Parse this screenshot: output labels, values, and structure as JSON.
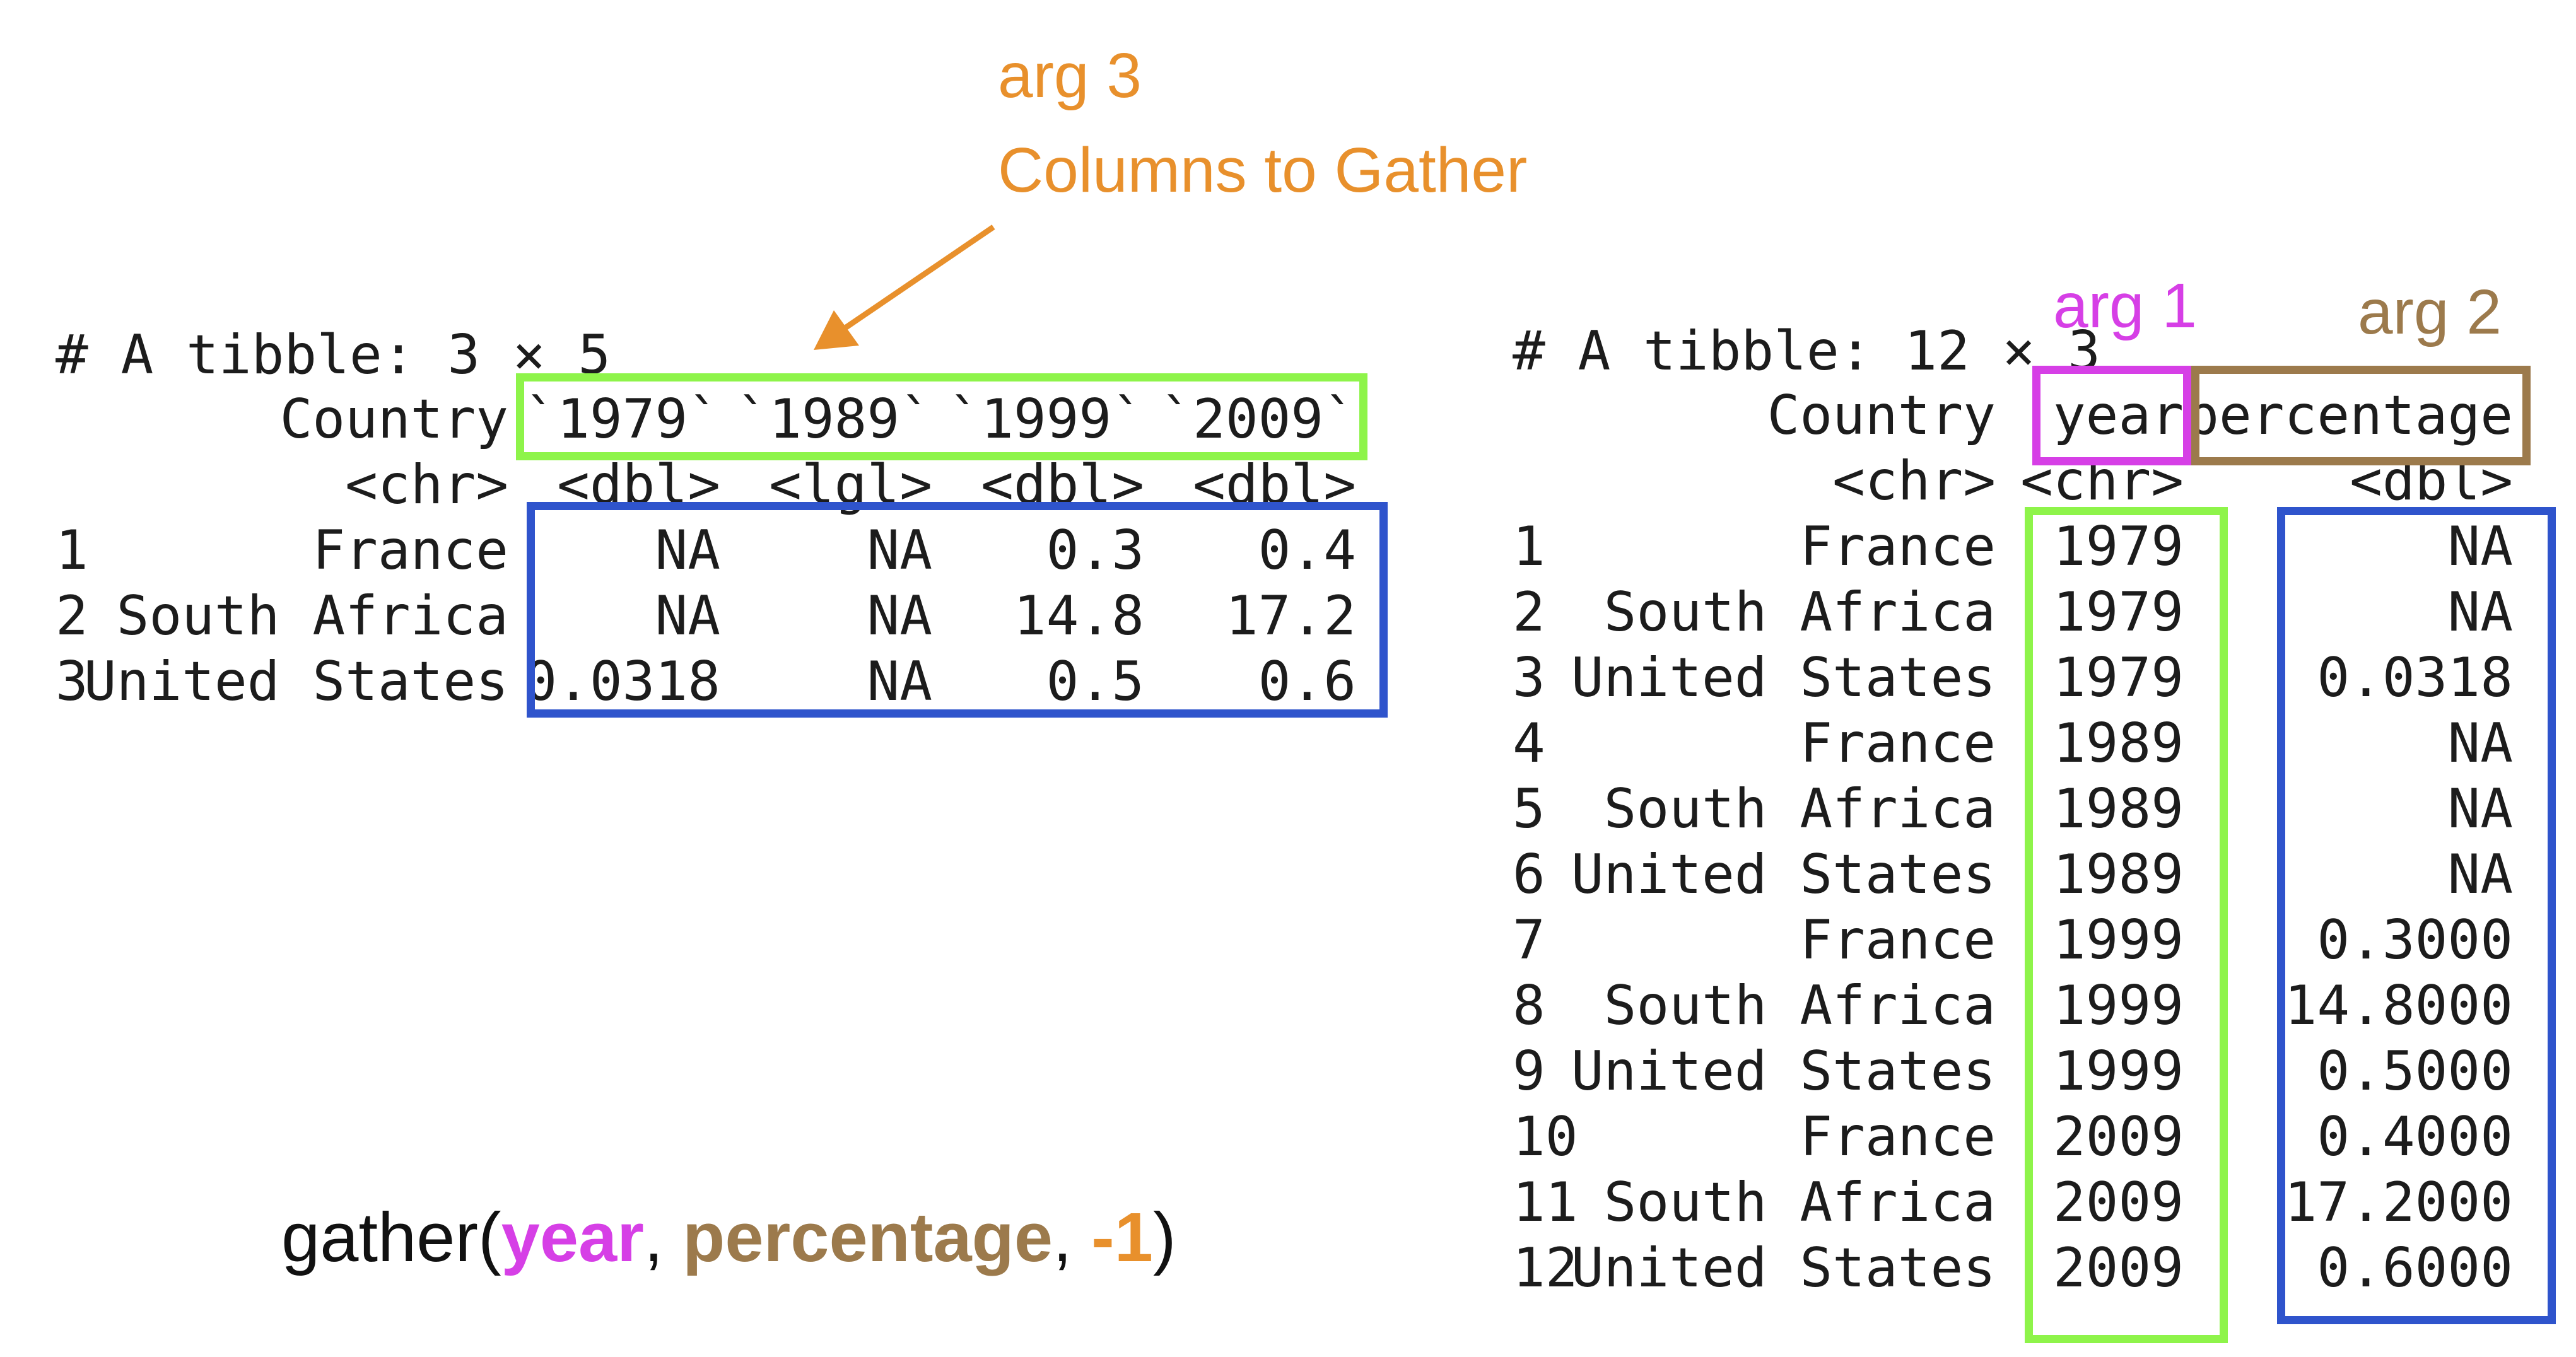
{
  "annotations": {
    "arg3_title": "arg 3",
    "arg3_subtitle": "Columns to Gather",
    "arg1": "arg 1",
    "arg2": "arg 2"
  },
  "code": {
    "prefix": "gather(",
    "arg1": "year",
    "sep1": ", ",
    "arg2": "percentage",
    "sep2": ", ",
    "arg3": "-1",
    "suffix": ")"
  },
  "colors": {
    "orange": "#e8902c",
    "magenta": "#d63fe6",
    "brown": "#9c7a4c",
    "green": "#8ef44a",
    "blue": "#2f54cc"
  },
  "wide_table": {
    "header": "# A tibble: 3 × 5",
    "columns": [
      "Country",
      "`1979`",
      "`1989`",
      "`1999`",
      "`2009`"
    ],
    "types": [
      "<chr>",
      "<dbl>",
      "<lgl>",
      "<dbl>",
      "<dbl>"
    ],
    "rows": [
      {
        "idx": "1",
        "country": "France",
        "values": [
          "NA",
          "NA",
          "0.3",
          "0.4"
        ]
      },
      {
        "idx": "2",
        "country": "South Africa",
        "values": [
          "NA",
          "NA",
          "14.8",
          "17.2"
        ]
      },
      {
        "idx": "3",
        "country": "United States",
        "values": [
          "0.0318",
          "NA",
          "0.5",
          "0.6"
        ]
      }
    ]
  },
  "long_table": {
    "header": "# A tibble: 12 × 3",
    "columns": [
      "Country",
      "year",
      "percentage"
    ],
    "types": [
      "<chr>",
      "<chr>",
      "<dbl>"
    ],
    "rows": [
      {
        "idx": "1",
        "country": "France",
        "year": "1979",
        "percentage": "NA"
      },
      {
        "idx": "2",
        "country": "South Africa",
        "year": "1979",
        "percentage": "NA"
      },
      {
        "idx": "3",
        "country": "United States",
        "year": "1979",
        "percentage": "0.0318"
      },
      {
        "idx": "4",
        "country": "France",
        "year": "1989",
        "percentage": "NA"
      },
      {
        "idx": "5",
        "country": "South Africa",
        "year": "1989",
        "percentage": "NA"
      },
      {
        "idx": "6",
        "country": "United States",
        "year": "1989",
        "percentage": "NA"
      },
      {
        "idx": "7",
        "country": "France",
        "year": "1999",
        "percentage": "0.3000"
      },
      {
        "idx": "8",
        "country": "South Africa",
        "year": "1999",
        "percentage": "14.8000"
      },
      {
        "idx": "9",
        "country": "United States",
        "year": "1999",
        "percentage": "0.5000"
      },
      {
        "idx": "10",
        "country": "France",
        "year": "2009",
        "percentage": "0.4000"
      },
      {
        "idx": "11",
        "country": "South Africa",
        "year": "2009",
        "percentage": "17.2000"
      },
      {
        "idx": "12",
        "country": "United States",
        "year": "2009",
        "percentage": "0.6000"
      }
    ]
  }
}
